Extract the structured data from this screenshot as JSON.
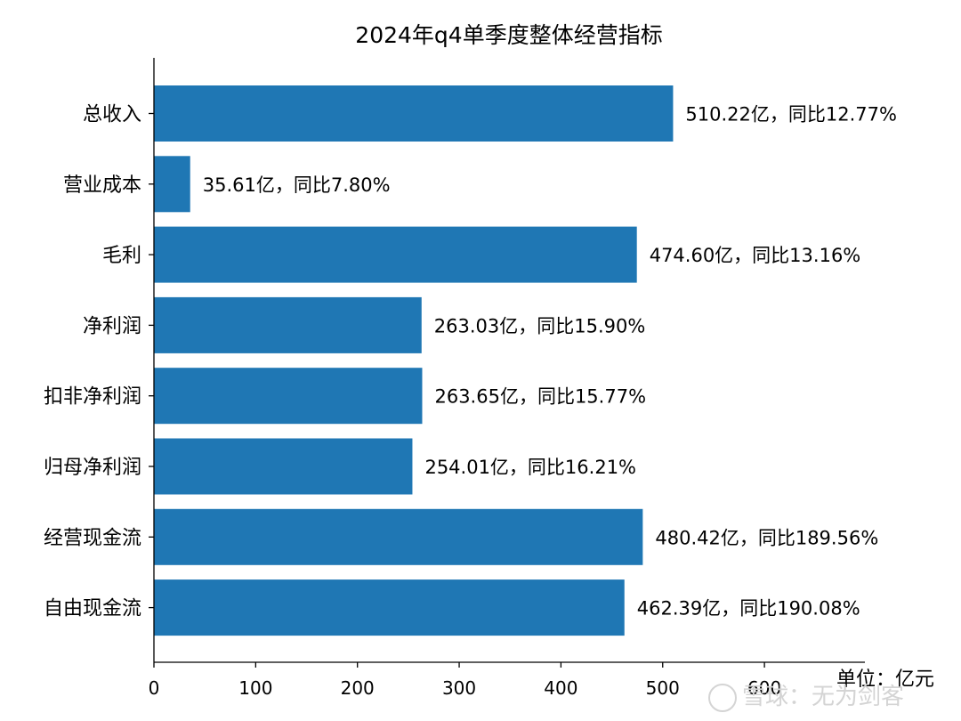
{
  "chart_data": {
    "type": "bar",
    "orientation": "horizontal",
    "title": "2024年q4单季度整体经营指标",
    "unit_label": "单位：亿元",
    "categories": [
      "总收入",
      "营业成本",
      "毛利",
      "净利润",
      "扣非净利润",
      "归母净利润",
      "经营现金流",
      "自由现金流"
    ],
    "values": [
      510.22,
      35.61,
      474.6,
      263.03,
      263.65,
      254.01,
      480.42,
      462.39
    ],
    "data_labels": [
      "510.22亿，同比12.77%",
      "35.61亿，同比7.80%",
      "474.60亿，同比13.16%",
      "263.03亿，同比15.90%",
      "263.65亿，同比15.77%",
      "254.01亿，同比16.21%",
      "480.42亿，同比189.56%",
      "462.39亿，同比190.08%"
    ],
    "x_ticks": [
      "0",
      "100",
      "200",
      "300",
      "400",
      "500",
      "600"
    ],
    "xlim": [
      0,
      700
    ],
    "bar_color": "#1f77b4",
    "grid": false
  },
  "watermark": "雪球：无为剑客"
}
